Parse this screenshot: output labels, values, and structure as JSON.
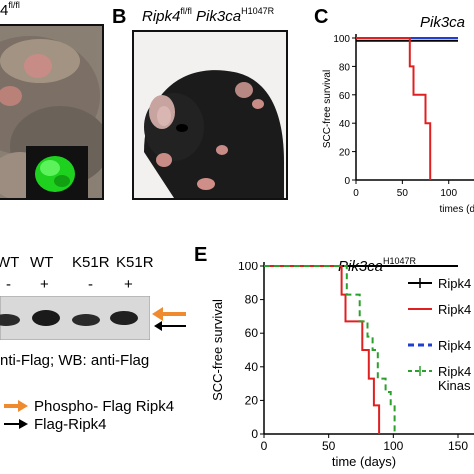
{
  "panel_a": {
    "title_suffix": "fl/fl"
  },
  "panel_b": {
    "label": "B",
    "title_gene1": "Ripk4",
    "title_sup1": "fl/fl",
    "title_gene2": "Pik3ca",
    "title_sup2": "H1047R"
  },
  "panel_c": {
    "label": "C",
    "title": "Pik3ca",
    "ylabel": "SCC-free survival",
    "xlabel": "times (da",
    "colors": {
      "black": "#000000",
      "red": "#e02020",
      "blue": "#1f3fcf"
    }
  },
  "panel_d": {
    "col_labels": [
      "WT",
      "WT",
      "K51R",
      "K51R"
    ],
    "signs": [
      "-",
      "+",
      "-",
      "+"
    ],
    "caption": "nti-Flag; WB: anti-Flag",
    "legend": [
      {
        "label": "Phospho- Flag Ripk4",
        "color": "#f08a2e"
      },
      {
        "label": "Flag-Ripk4",
        "color": "#000000"
      }
    ]
  },
  "panel_e": {
    "label": "E",
    "title_gene": "Pik3ca",
    "title_sup": "H1047R",
    "ylabel": "SCC-free survival",
    "xlabel": "time (days)",
    "legend": [
      "Ripk4",
      "Ripk4",
      "Ripk4",
      "Ripk4",
      "Kinas"
    ]
  },
  "chart_data": [
    {
      "type": "line",
      "title": "Pik3ca",
      "ylabel": "SCC-free survival",
      "xlabel": "times (da",
      "ylim": [
        0,
        100
      ],
      "xlim": [
        0,
        110
      ],
      "yticks": [
        0,
        20,
        40,
        60,
        80,
        100
      ],
      "xticks": [
        0,
        50,
        100
      ],
      "series": [
        {
          "color": "#1f3fcf",
          "points": [
            [
              0,
              100
            ],
            [
              110,
              100
            ]
          ]
        },
        {
          "color": "#000000",
          "points": [
            [
              0,
              98
            ],
            [
              110,
              98
            ]
          ]
        },
        {
          "color": "#e02020",
          "points": [
            [
              0,
              100
            ],
            [
              58,
              100
            ],
            [
              58,
              80
            ],
            [
              62,
              80
            ],
            [
              62,
              60
            ],
            [
              75,
              60
            ],
            [
              75,
              40
            ],
            [
              80,
              40
            ],
            [
              80,
              0
            ]
          ]
        }
      ]
    },
    {
      "type": "line",
      "title": "Pik3ca H1047R",
      "ylabel": "SCC-free survival",
      "xlabel": "time (days)",
      "ylim": [
        0,
        100
      ],
      "xlim": [
        0,
        150
      ],
      "yticks": [
        0,
        20,
        40,
        60,
        80,
        100
      ],
      "xticks": [
        0,
        50,
        100,
        150
      ],
      "series": [
        {
          "name": "Ripk4",
          "color": "#000000",
          "dash": "solid",
          "points": [
            [
              0,
              100
            ],
            [
              150,
              100
            ]
          ]
        },
        {
          "name": "Ripk4",
          "color": "#e02020",
          "dash": "solid",
          "points": [
            [
              0,
              100
            ],
            [
              60,
              100
            ],
            [
              60,
              83
            ],
            [
              63,
              83
            ],
            [
              63,
              67
            ],
            [
              76,
              67
            ],
            [
              76,
              50
            ],
            [
              81,
              50
            ],
            [
              81,
              33
            ],
            [
              85,
              33
            ],
            [
              85,
              17
            ],
            [
              89,
              17
            ],
            [
              89,
              0
            ]
          ]
        },
        {
          "name": "Ripk4",
          "color": "#1f3fcf",
          "dash": "dash",
          "points": [
            [
              0,
              103
            ],
            [
              150,
              103
            ]
          ]
        },
        {
          "name": "Ripk4 Kinas",
          "color": "#2ca02c",
          "dash": "dash",
          "points": [
            [
              0,
              100
            ],
            [
              64,
              100
            ],
            [
              64,
              83
            ],
            [
              74,
              83
            ],
            [
              74,
              67
            ],
            [
              80,
              67
            ],
            [
              80,
              58
            ],
            [
              84,
              58
            ],
            [
              84,
              50
            ],
            [
              88,
              50
            ],
            [
              88,
              33
            ],
            [
              94,
              33
            ],
            [
              94,
              25
            ],
            [
              98,
              25
            ],
            [
              98,
              17
            ],
            [
              101,
              17
            ],
            [
              101,
              0
            ]
          ]
        }
      ]
    }
  ]
}
